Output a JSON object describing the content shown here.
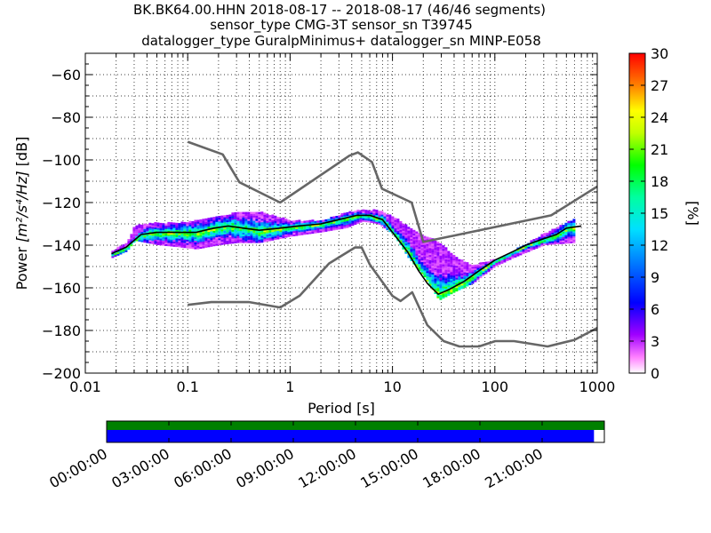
{
  "chart_data": {
    "type": "heatmap",
    "title_lines": [
      "BK.BK64.00.HHN   2018-08-17 -- 2018-08-17  (46/46 segments)",
      "sensor_type CMG-3T sensor_sn T39745",
      "datalogger_type GuralpMinimus+ datalogger_sn MINP-E058"
    ],
    "xlabel": "Period [s]",
    "ylabel_prefix": "Power ",
    "ylabel_units": "[m²/s⁴/Hz]",
    "ylabel_suffix": " [dB]",
    "x_scale": "log",
    "xlim": [
      0.01,
      1000
    ],
    "ylim": [
      -200,
      -50
    ],
    "x_ticks": [
      0.01,
      0.1,
      1,
      10,
      100,
      1000
    ],
    "x_tick_labels": [
      "0.01",
      "0.1",
      "1",
      "10",
      "100",
      "1000"
    ],
    "y_ticks": [
      -200,
      -180,
      -160,
      -140,
      -120,
      -100,
      -80,
      -60
    ],
    "y_tick_labels": [
      "−200",
      "−180",
      "−160",
      "−140",
      "−120",
      "−100",
      "−80",
      "−60"
    ],
    "colorbar": {
      "label": "[%]",
      "range": [
        0,
        30
      ],
      "ticks": [
        0,
        3,
        6,
        9,
        12,
        15,
        18,
        21,
        24,
        27,
        30
      ],
      "tick_labels": [
        "0",
        "3",
        "6",
        "9",
        "12",
        "15",
        "18",
        "21",
        "24",
        "27",
        "30"
      ]
    },
    "noise_models": {
      "high_noise_model": {
        "x": [
          0.1,
          0.22,
          0.32,
          0.8,
          3.8,
          4.6,
          6.3,
          7.9,
          15.4,
          20,
          354.8,
          1000
        ],
        "y": [
          -91.5,
          -97.4,
          -110.5,
          -120.0,
          -98.0,
          -96.5,
          -101.0,
          -113.5,
          -120.0,
          -138.5,
          -126.0,
          -112.5
        ]
      },
      "low_noise_model": {
        "x": [
          0.1,
          0.17,
          0.4,
          0.8,
          1.24,
          2.4,
          4.3,
          5.0,
          6.0,
          10,
          12,
          15.6,
          21.9,
          31.6,
          45,
          70,
          101,
          154,
          328,
          600,
          1000
        ],
        "y": [
          -168.0,
          -166.7,
          -166.7,
          -169.2,
          -163.7,
          -148.6,
          -141.1,
          -141.1,
          -149.0,
          -163.8,
          -166.2,
          -162.1,
          -177.5,
          -185.0,
          -187.5,
          -187.5,
          -185.0,
          -185.0,
          -187.5,
          -184.4,
          -178.8
        ]
      }
    },
    "median_psd": {
      "x": [
        0.018,
        0.025,
        0.035,
        0.05,
        0.08,
        0.12,
        0.18,
        0.25,
        0.35,
        0.5,
        0.8,
        1.2,
        2.0,
        3.0,
        4.5,
        6.0,
        8.0,
        10,
        14,
        18,
        22,
        28,
        35,
        50,
        70,
        100,
        150,
        200,
        300,
        400,
        500,
        700
      ],
      "y": [
        -144,
        -141,
        -135,
        -134,
        -134,
        -134,
        -132,
        -131,
        -132,
        -133,
        -132,
        -131,
        -130,
        -128,
        -126,
        -126,
        -128,
        -134,
        -143,
        -152,
        -158,
        -163,
        -161,
        -157,
        -152,
        -147,
        -143,
        -140,
        -137,
        -135,
        -132,
        -131
      ]
    },
    "ppsd_spread": {
      "x": [
        0.018,
        0.025,
        0.03,
        0.05,
        0.08,
        0.12,
        0.2,
        0.3,
        0.5,
        1,
        2,
        3.5,
        5,
        7,
        10,
        14,
        20,
        28,
        40,
        60,
        100,
        150,
        300,
        600
      ],
      "y_low": [
        -145,
        -142,
        -137,
        -139,
        -140,
        -141,
        -139,
        -138,
        -138,
        -135,
        -133,
        -131,
        -128,
        -129,
        -134,
        -145,
        -154,
        -165,
        -161,
        -157,
        -149,
        -145,
        -139,
        -138
      ],
      "y_high": [
        -142,
        -138,
        -130,
        -129,
        -129,
        -128,
        -126,
        -124,
        -124,
        -128,
        -128,
        -124,
        -123,
        -123,
        -126,
        -131,
        -135,
        -138,
        -145,
        -149,
        -146,
        -142,
        -134,
        -127
      ]
    },
    "time_coverage": {
      "xlim_hours": [
        0,
        24
      ],
      "tick_labels": [
        "00:00:00",
        "03:00:00",
        "06:00:00",
        "09:00:00",
        "12:00:00",
        "15:00:00",
        "18:00:00",
        "21:00:00"
      ],
      "tick_hours": [
        0,
        3,
        6,
        9,
        12,
        15,
        18,
        21
      ],
      "available_end_hours": 24,
      "processed_end_hours": 23.5
    },
    "colors": {
      "noise_model": "#666666",
      "median": "#000000",
      "data_available": "#008000",
      "data_processed": "#0000ff"
    },
    "grid": true
  }
}
